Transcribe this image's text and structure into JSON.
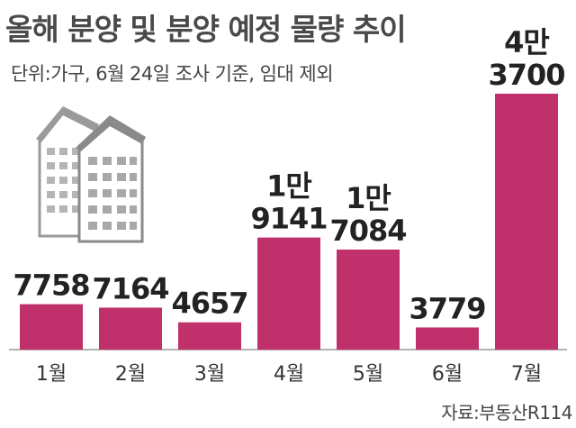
{
  "title": "올해 분양 및 분양 예정 물량 추이",
  "unit_note": "단위:가구, 6월 24일 조사 기준, 임대 제외",
  "source": "자료:부동산R114",
  "colors": {
    "bar": "#c0306a",
    "axis": "#999999"
  },
  "chart_data": {
    "type": "bar",
    "title": "올해 분양 및 분양 예정 물량 추이",
    "categories": [
      "1월",
      "2월",
      "3월",
      "4월",
      "5월",
      "6월",
      "7월"
    ],
    "values": [
      7758,
      7164,
      4657,
      19141,
      17084,
      3779,
      43700
    ],
    "data_labels": [
      [
        "7758"
      ],
      [
        "7164"
      ],
      [
        "4657"
      ],
      [
        "1만",
        "9141"
      ],
      [
        "1만",
        "7084"
      ],
      [
        "3779"
      ],
      [
        "4만",
        "3700"
      ]
    ],
    "ylim": [
      0,
      46000
    ],
    "grid": false,
    "xlabel": "",
    "ylabel": ""
  }
}
